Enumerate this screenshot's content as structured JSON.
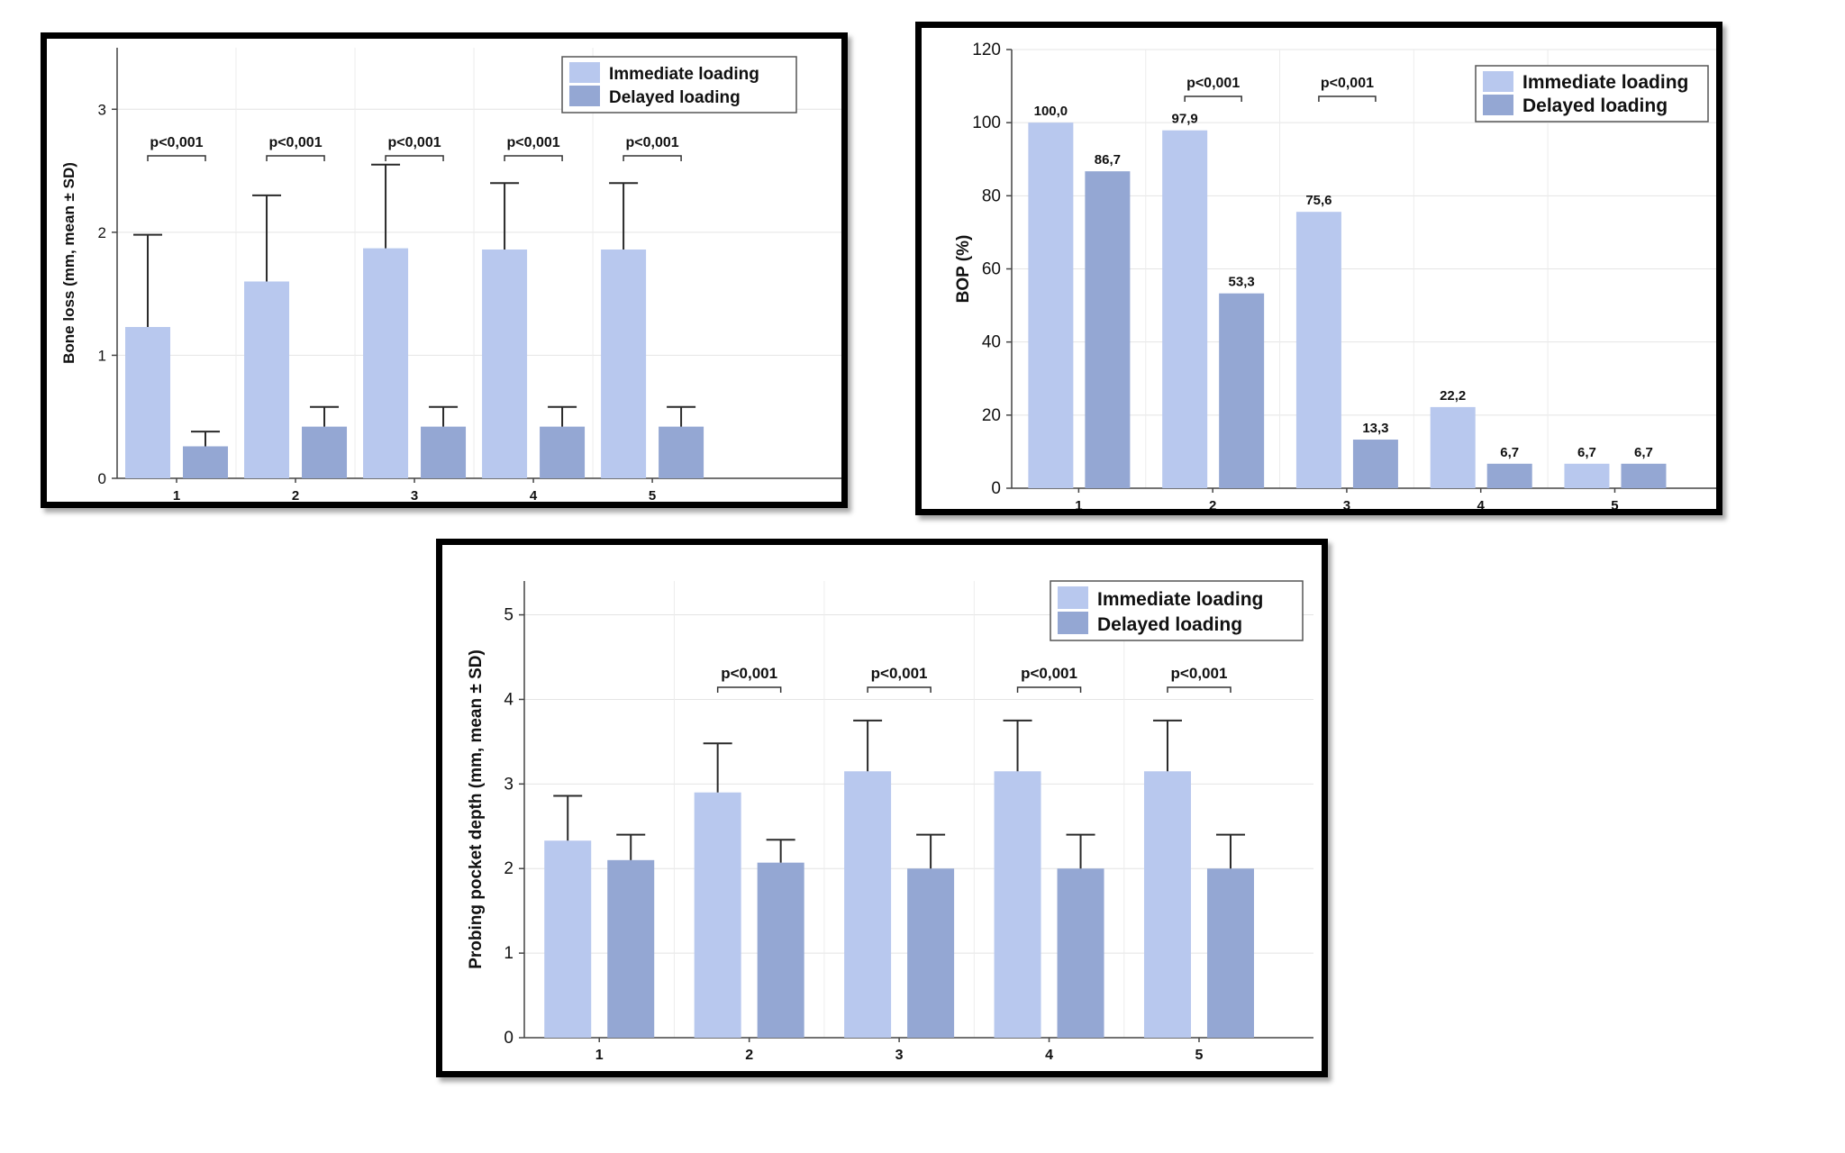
{
  "colors": {
    "immediate": "#b8c8ee",
    "delayed": "#94a7d3"
  },
  "chart_data": [
    {
      "id": "bone",
      "type": "bar",
      "ylabel": "Bone loss (mm, mean ± SD)",
      "ylim": [
        0,
        3.5
      ],
      "yticks": [
        0,
        1,
        2,
        3
      ],
      "categories": [
        "1",
        "2",
        "3",
        "4",
        "5"
      ],
      "series": [
        {
          "name": "Immediate loading",
          "values": [
            1.23,
            1.6,
            1.87,
            1.86,
            1.86
          ],
          "sd": [
            0.75,
            0.7,
            0.68,
            0.54,
            0.54
          ]
        },
        {
          "name": "Delayed loading",
          "values": [
            0.26,
            0.42,
            0.42,
            0.42,
            0.42
          ],
          "sd": [
            0.12,
            0.16,
            0.16,
            0.16,
            0.16
          ]
        }
      ],
      "significance": [
        {
          "category": "1",
          "label": "p<0,001"
        },
        {
          "category": "2",
          "label": "p<0,001"
        },
        {
          "category": "3",
          "label": "p<0,001"
        },
        {
          "category": "4",
          "label": "p<0,001"
        },
        {
          "category": "5",
          "label": "p<0,001"
        }
      ],
      "legend": "top-right"
    },
    {
      "id": "bop",
      "type": "bar",
      "ylabel": "BOP (%)",
      "ylim": [
        0,
        120
      ],
      "yticks": [
        0,
        20,
        40,
        60,
        80,
        100,
        120
      ],
      "categories": [
        "1",
        "2",
        "3",
        "4",
        "5"
      ],
      "series": [
        {
          "name": "Immediate loading",
          "values": [
            100.0,
            97.9,
            75.6,
            22.2,
            6.7
          ],
          "labels": [
            "100,0",
            "97,9",
            "75,6",
            "22,2",
            "6,7"
          ]
        },
        {
          "name": "Delayed loading",
          "values": [
            86.7,
            53.3,
            13.3,
            6.7,
            6.7
          ],
          "labels": [
            "86,7",
            "53,3",
            "13,3",
            "6,7",
            "6,7"
          ]
        }
      ],
      "significance": [
        {
          "category": "2",
          "label": "p<0,001"
        },
        {
          "category": "3",
          "label": "p<0,001"
        }
      ],
      "legend": "top-right"
    },
    {
      "id": "ppd",
      "type": "bar",
      "ylabel": "Probing pocket depth (mm, mean ± SD)",
      "ylim": [
        0,
        5.4
      ],
      "yticks": [
        0,
        1,
        2,
        3,
        4,
        5
      ],
      "categories": [
        "1",
        "2",
        "3",
        "4",
        "5"
      ],
      "series": [
        {
          "name": "Immediate loading",
          "values": [
            2.33,
            2.9,
            3.15,
            3.15,
            3.15
          ],
          "sd": [
            0.53,
            0.58,
            0.6,
            0.6,
            0.6
          ]
        },
        {
          "name": "Delayed loading",
          "values": [
            2.1,
            2.07,
            2.0,
            2.0,
            2.0
          ],
          "sd": [
            0.3,
            0.27,
            0.4,
            0.4,
            0.4
          ]
        }
      ],
      "significance": [
        {
          "category": "2",
          "label": "p<0,001"
        },
        {
          "category": "3",
          "label": "p<0,001"
        },
        {
          "category": "4",
          "label": "p<0,001"
        },
        {
          "category": "5",
          "label": "p<0,001"
        }
      ],
      "legend": "top-right"
    }
  ]
}
